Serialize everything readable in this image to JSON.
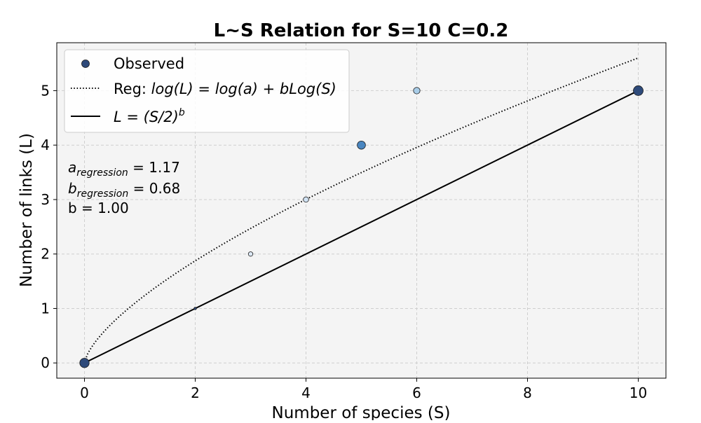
{
  "chart_data": {
    "type": "scatter",
    "title": "L~S Relation for S=10 C=0.2",
    "xlabel": "Number of species (S)",
    "ylabel": "Number of links (L)",
    "xlim": [
      -0.5,
      10.5
    ],
    "ylim": [
      -0.28,
      5.88
    ],
    "xticks": [
      0,
      2,
      4,
      6,
      8,
      10
    ],
    "yticks": [
      0,
      1,
      2,
      3,
      4,
      5
    ],
    "grid": true,
    "legend_placement": "upper-left",
    "legend": [
      {
        "key": "observed",
        "text": "Observed"
      },
      {
        "key": "reg",
        "prefix": "Reg: ",
        "math": "log(L) = log(a) + bLog(S)"
      },
      {
        "key": "model",
        "math_base": "L = (S/2)",
        "math_sup": "b"
      }
    ],
    "series": [
      {
        "name": "Observed",
        "kind": "scatter",
        "points": [
          {
            "x": 0,
            "y": 0,
            "weight": 0.9,
            "color": "#2e4a7a"
          },
          {
            "x": 2,
            "y": 1,
            "weight": 0.05,
            "color": "#2e4a7a"
          },
          {
            "x": 3,
            "y": 2,
            "weight": 0.3,
            "color": "#dce8f5"
          },
          {
            "x": 4,
            "y": 3,
            "weight": 0.4,
            "color": "#cfe1f2"
          },
          {
            "x": 5,
            "y": 4,
            "weight": 0.75,
            "color": "#4a86c0"
          },
          {
            "x": 6,
            "y": 5,
            "weight": 0.55,
            "color": "#a9cde8"
          },
          {
            "x": 10,
            "y": 5,
            "weight": 0.95,
            "color": "#2e4a7a"
          }
        ]
      },
      {
        "name": "Reg: log(L) = log(a) + bLog(S)",
        "kind": "curve",
        "style": "dotted",
        "a": 1.17,
        "b": 0.68,
        "x_range": [
          0,
          10
        ]
      },
      {
        "name": "L = (S/2)^b",
        "kind": "line",
        "style": "solid",
        "b": 1.0,
        "points": [
          {
            "x": 0,
            "y": 0
          },
          {
            "x": 10,
            "y": 5
          }
        ]
      }
    ],
    "annotations": [
      {
        "key": "a",
        "base": "a",
        "sub": "regression",
        "value": " = 1.17"
      },
      {
        "key": "b",
        "base": "b",
        "sub": "regression",
        "value": " = 0.68"
      },
      {
        "key": "b_plain",
        "text": "b = 1.00"
      }
    ]
  }
}
